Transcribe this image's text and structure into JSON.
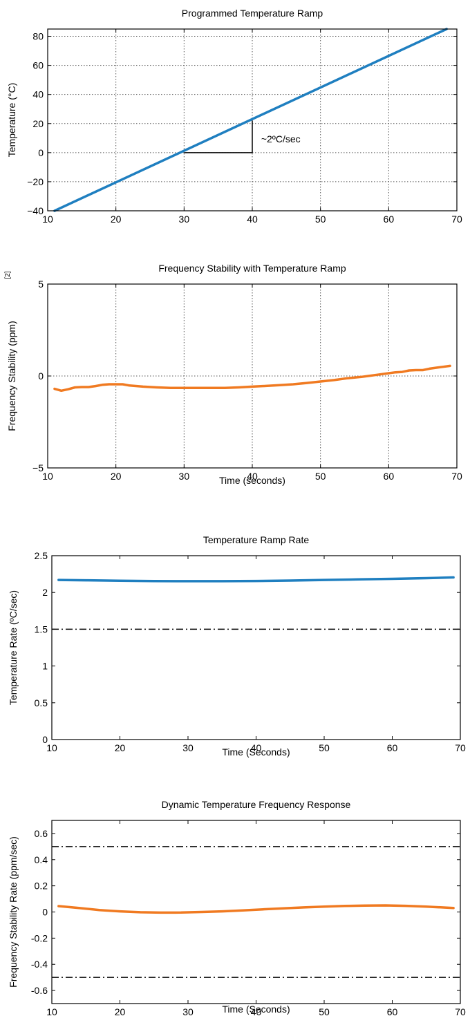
{
  "chart_data": [
    {
      "type": "line",
      "title": "Programmed Temperature Ramp",
      "xlabel": "",
      "ylabel": "Temperature (°C)",
      "xlim": [
        10,
        70
      ],
      "ylim": [
        -40,
        85
      ],
      "xticks": [
        10,
        20,
        30,
        40,
        50,
        60,
        70
      ],
      "yticks": [
        -40,
        -20,
        0,
        20,
        40,
        60,
        80
      ],
      "grid": true,
      "annotation": "~2ºC/sec",
      "series": [
        {
          "color": "#1f7fc0",
          "x": [
            11,
            68.5
          ],
          "y": [
            -40,
            85
          ]
        }
      ],
      "slope_marker": {
        "x": [
          30,
          40
        ],
        "y": [
          0,
          22
        ]
      }
    },
    {
      "type": "line",
      "title": "Frequency Stability with Temperature Ramp",
      "xlabel": "Time (seconds)",
      "ylabel": "Frequency Stability (ppm)",
      "side_label": "[2]",
      "xlim": [
        10,
        70
      ],
      "ylim": [
        -5,
        5
      ],
      "xticks": [
        10,
        20,
        30,
        40,
        50,
        60,
        70
      ],
      "yticks": [
        -5,
        0,
        5
      ],
      "grid": true,
      "series": [
        {
          "color": "#f07a21",
          "x": [
            11,
            12,
            13,
            14,
            15,
            16,
            17,
            18,
            19,
            20,
            21,
            22,
            24,
            26,
            28,
            30,
            32,
            34,
            36,
            38,
            40,
            42,
            44,
            46,
            48,
            50,
            52,
            54,
            56,
            57,
            58,
            59,
            60,
            61,
            62,
            63,
            64,
            65,
            66,
            67,
            68,
            69
          ],
          "y": [
            -0.7,
            -0.8,
            -0.72,
            -0.62,
            -0.6,
            -0.6,
            -0.55,
            -0.48,
            -0.45,
            -0.45,
            -0.45,
            -0.52,
            -0.58,
            -0.62,
            -0.65,
            -0.65,
            -0.65,
            -0.65,
            -0.65,
            -0.62,
            -0.58,
            -0.54,
            -0.5,
            -0.45,
            -0.38,
            -0.3,
            -0.22,
            -0.12,
            -0.05,
            0.0,
            0.05,
            0.1,
            0.15,
            0.2,
            0.22,
            0.3,
            0.32,
            0.32,
            0.4,
            0.45,
            0.5,
            0.55
          ]
        }
      ]
    },
    {
      "type": "line",
      "title": "Temperature Ramp Rate",
      "xlabel": "Time (Seconds)",
      "ylabel": "Temperature Rate (ºC/sec)",
      "xlim": [
        10,
        70
      ],
      "ylim": [
        0,
        2.5
      ],
      "xticks": [
        10,
        20,
        30,
        40,
        50,
        60,
        70
      ],
      "yticks": [
        0,
        0.5,
        1,
        1.5,
        2,
        2.5
      ],
      "grid": false,
      "reference_lines": [
        1.5
      ],
      "series": [
        {
          "color": "#1f7fc0",
          "x": [
            11,
            15,
            20,
            25,
            30,
            35,
            40,
            45,
            50,
            55,
            60,
            65,
            69
          ],
          "y": [
            2.17,
            2.165,
            2.16,
            2.155,
            2.153,
            2.153,
            2.156,
            2.162,
            2.17,
            2.178,
            2.185,
            2.195,
            2.205
          ]
        }
      ]
    },
    {
      "type": "line",
      "title": "Dynamic Temperature Frequency Response",
      "xlabel": "Time (Seconds)",
      "ylabel": "Frequency Stability Rate (ppm/sec)",
      "xlim": [
        10,
        70
      ],
      "ylim": [
        -0.7,
        0.7
      ],
      "xticks": [
        10,
        20,
        30,
        40,
        50,
        60,
        70
      ],
      "yticks": [
        -0.6,
        -0.4,
        -0.2,
        0,
        0.2,
        0.4,
        0.6
      ],
      "ytick_labels": [
        "-0.6",
        "-0.4",
        "-0.2",
        "0",
        "0.2",
        "0.4",
        "0.6"
      ],
      "grid": false,
      "reference_lines": [
        0.5,
        -0.5
      ],
      "series": [
        {
          "color": "#f07a21",
          "x": [
            11,
            14,
            17,
            20,
            23,
            26,
            29,
            32,
            35,
            38,
            41,
            44,
            47,
            50,
            53,
            56,
            59,
            62,
            65,
            69
          ],
          "y": [
            0.045,
            0.03,
            0.015,
            0.005,
            -0.002,
            -0.005,
            -0.004,
            0.0,
            0.005,
            0.012,
            0.02,
            0.028,
            0.035,
            0.041,
            0.046,
            0.049,
            0.05,
            0.047,
            0.041,
            0.03
          ]
        }
      ]
    }
  ]
}
